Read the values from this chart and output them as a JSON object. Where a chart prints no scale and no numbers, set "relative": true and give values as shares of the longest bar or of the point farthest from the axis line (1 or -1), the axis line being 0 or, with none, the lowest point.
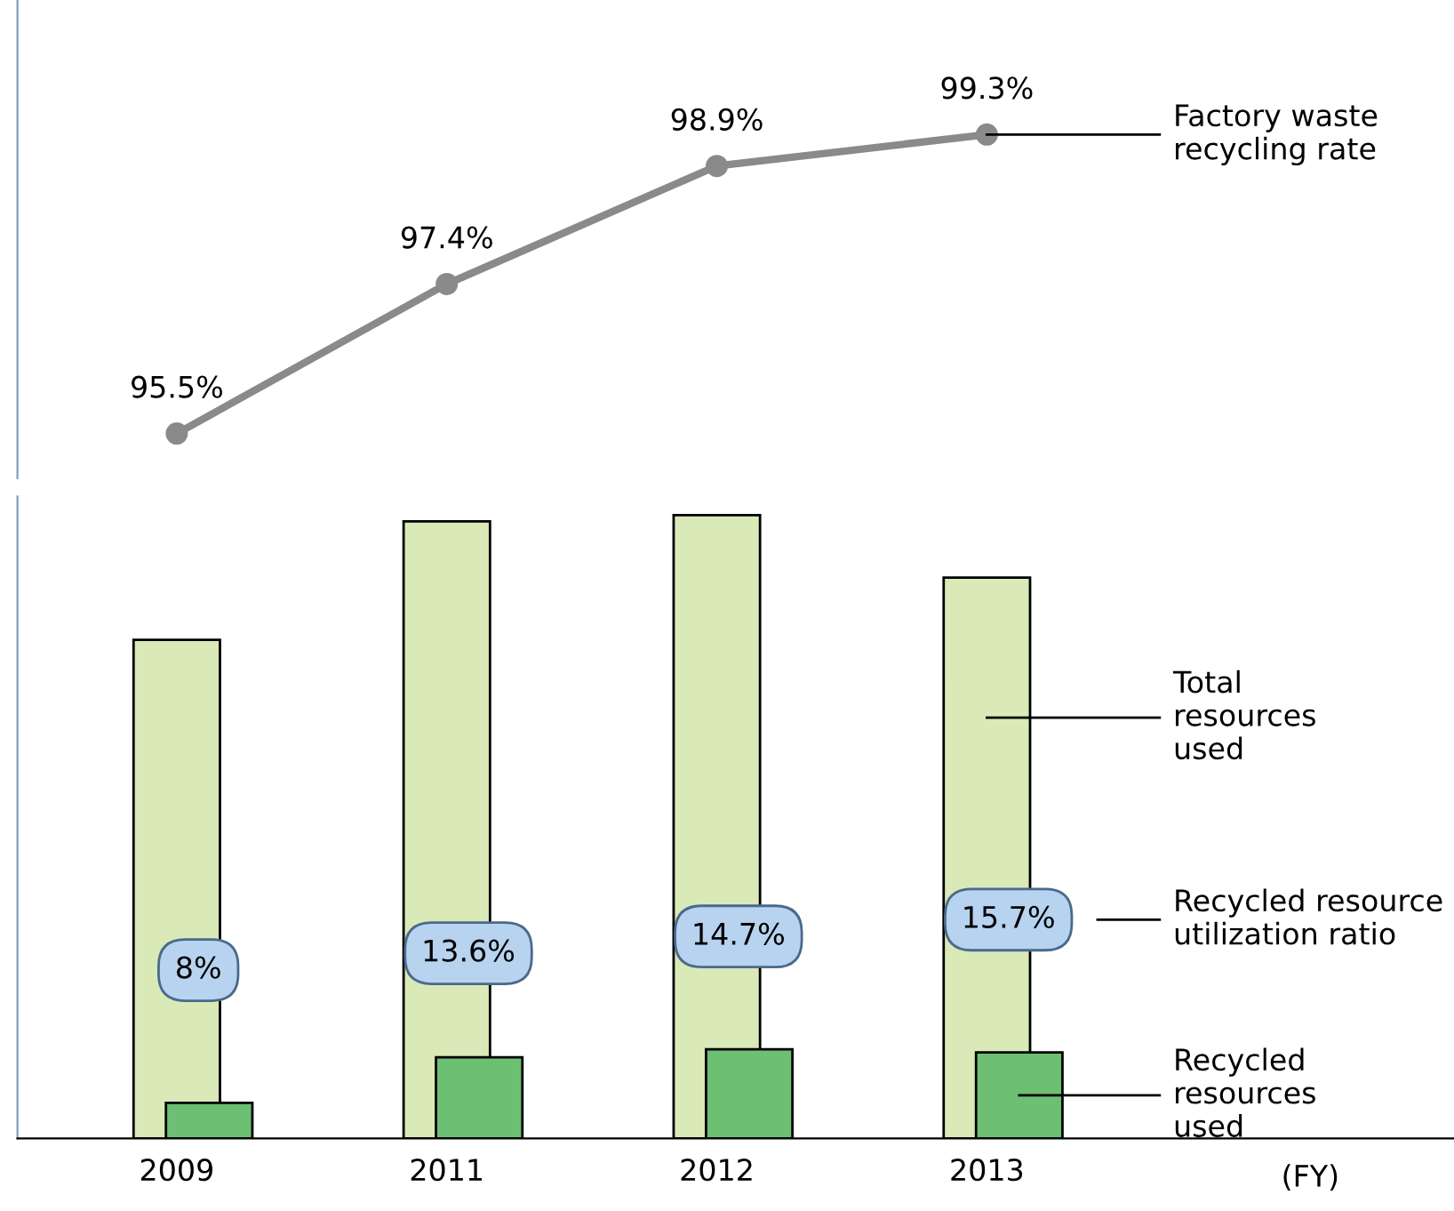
{
  "chart_data": [
    {
      "type": "line",
      "categories": [
        "2009",
        "2011",
        "2012",
        "2013"
      ],
      "tick_labels": false,
      "legend": "right",
      "marker": "circle",
      "series": [
        {
          "name": "Factory waste recycling rate",
          "color": "#8a8a8a",
          "values": [
            95.5,
            97.4,
            98.9,
            99.3
          ],
          "value_labels": [
            "95.5%",
            "97.4%",
            "98.9%",
            "99.3%"
          ]
        }
      ]
    },
    {
      "type": "bar",
      "relative": true,
      "categories": [
        "2009",
        "2011",
        "2012",
        "2013"
      ],
      "xlabel": "(FY)",
      "legend": "right",
      "series": [
        {
          "name": "Total resources used",
          "color": "#d9e9b8",
          "values": [
            0.8,
            0.99,
            1.0,
            0.9
          ]
        },
        {
          "name": "Recycled resources used",
          "color": "#6dbf73",
          "values": [
            0.057,
            0.13,
            0.143,
            0.138
          ]
        }
      ],
      "annotations": [
        "8%",
        "13.6%",
        "14.7%",
        "15.7%",
        "Recycled resource utilization ratio"
      ]
    }
  ]
}
